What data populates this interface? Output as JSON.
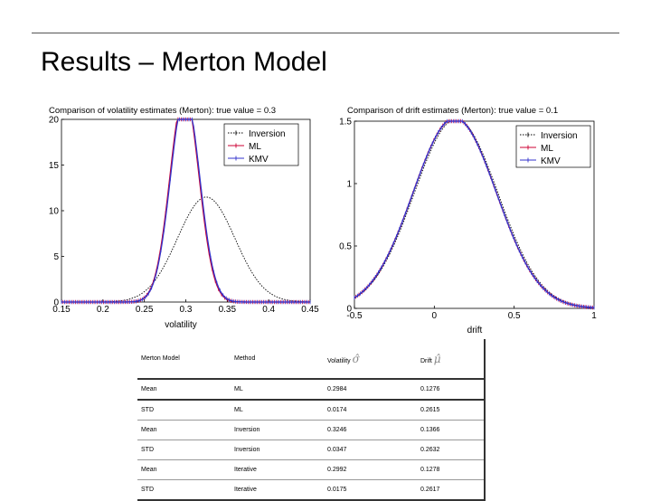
{
  "slide": {
    "title": "Results – Merton Model"
  },
  "chart_data": [
    {
      "type": "line",
      "title": "Comparison of volatility estimates (Merton): true value = 0.3",
      "xlabel": "volatility",
      "ylabel": "",
      "xlim": [
        0.15,
        0.45
      ],
      "ylim": [
        0,
        20
      ],
      "xticks": [
        "0.15",
        "0.2",
        "0.25",
        "0.3",
        "0.35",
        "0.4",
        "0.45"
      ],
      "yticks": [
        "0",
        "5",
        "10",
        "15",
        "20"
      ],
      "legend_position": "top-right",
      "grid": false,
      "series": [
        {
          "name": "Inversion",
          "distribution": "normal",
          "mean": 0.3246,
          "std": 0.0347,
          "color": "#000000",
          "style": "dotted"
        },
        {
          "name": "ML",
          "distribution": "normal",
          "mean": 0.2984,
          "std": 0.0174,
          "color": "#cc0033",
          "style": "solid-markers"
        },
        {
          "name": "KMV",
          "distribution": "normal",
          "mean": 0.2992,
          "std": 0.0175,
          "color": "#3333cc",
          "style": "solid-markers"
        }
      ]
    },
    {
      "type": "line",
      "title": "Comparison of drift estimates (Merton): true value = 0.1",
      "xlabel": "drift",
      "ylabel": "",
      "xlim": [
        -0.5,
        1
      ],
      "ylim": [
        0,
        1.5
      ],
      "xticks": [
        "-0.5",
        "0",
        "0.5",
        "1"
      ],
      "yticks": [
        "0",
        "0.5",
        "1",
        "1.5"
      ],
      "legend_position": "top-right",
      "grid": false,
      "series": [
        {
          "name": "Inversion",
          "distribution": "normal",
          "mean": 0.1366,
          "std": 0.2632,
          "color": "#000000",
          "style": "dotted"
        },
        {
          "name": "ML",
          "distribution": "normal",
          "mean": 0.1276,
          "std": 0.2615,
          "color": "#cc0033",
          "style": "solid-markers"
        },
        {
          "name": "KMV",
          "distribution": "normal",
          "mean": 0.1278,
          "std": 0.2617,
          "color": "#3333cc",
          "style": "solid-markers"
        }
      ]
    }
  ],
  "table": {
    "header": [
      "Merton Model",
      "Method",
      "Volatility",
      "Drift"
    ],
    "header_symbols": [
      "σ̂",
      "μ̂"
    ],
    "rows": [
      [
        "Mean",
        "ML",
        "0.2984",
        "0.1276"
      ],
      [
        "STD",
        "ML",
        "0.0174",
        "0.2615"
      ],
      [
        "Mean",
        "Inversion",
        "0.3246",
        "0.1366"
      ],
      [
        "STD",
        "Inversion",
        "0.0347",
        "0.2632"
      ],
      [
        "Mean",
        "Iterative",
        "0.2992",
        "0.1278"
      ],
      [
        "STD",
        "Iterative",
        "0.0175",
        "0.2617"
      ]
    ]
  }
}
